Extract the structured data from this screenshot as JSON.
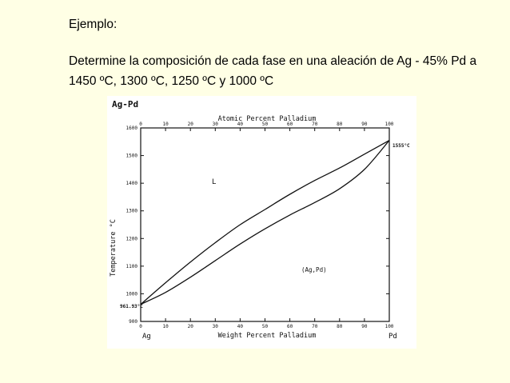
{
  "slide": {
    "heading": "Ejemplo:",
    "problem_text": "Determine la composición de cada fase en una aleación de Ag - 45% Pd a 1450 ºC, 1300 ºC, 1250 ºC y 1000 ºC"
  },
  "diagram": {
    "system_label": "Ag-Pd",
    "top_axis_label": "Atomic Percent Palladium",
    "bottom_axis_label": "Weight Percent Palladium",
    "y_axis_label": "Temperature °C",
    "left_element": "Ag",
    "right_element": "Pd",
    "melting_point_ag": "961.93°C",
    "melting_point_pd": "1555°C",
    "region_liquid": "L",
    "region_solid": "(Ag,Pd)",
    "x_ticks": [
      "0",
      "10",
      "20",
      "30",
      "40",
      "50",
      "60",
      "70",
      "80",
      "90",
      "100"
    ],
    "y_ticks": [
      "900",
      "1000",
      "1100",
      "1200",
      "1300",
      "1400",
      "1500",
      "1600"
    ],
    "top_ticks": [
      "0",
      "10",
      "20",
      "30",
      "40",
      "50",
      "60",
      "70",
      "80",
      "90",
      "100"
    ],
    "x_range": [
      0,
      100
    ],
    "y_range": [
      900,
      1600
    ],
    "liquidus": [
      [
        0,
        961.93
      ],
      [
        10,
        1040
      ],
      [
        20,
        1115
      ],
      [
        30,
        1185
      ],
      [
        40,
        1250
      ],
      [
        50,
        1305
      ],
      [
        60,
        1360
      ],
      [
        70,
        1410
      ],
      [
        80,
        1455
      ],
      [
        90,
        1505
      ],
      [
        100,
        1555
      ]
    ],
    "solidus": [
      [
        0,
        961.93
      ],
      [
        10,
        1005
      ],
      [
        20,
        1060
      ],
      [
        30,
        1120
      ],
      [
        40,
        1180
      ],
      [
        50,
        1235
      ],
      [
        60,
        1285
      ],
      [
        70,
        1330
      ],
      [
        80,
        1380
      ],
      [
        90,
        1450
      ],
      [
        100,
        1555
      ]
    ]
  }
}
